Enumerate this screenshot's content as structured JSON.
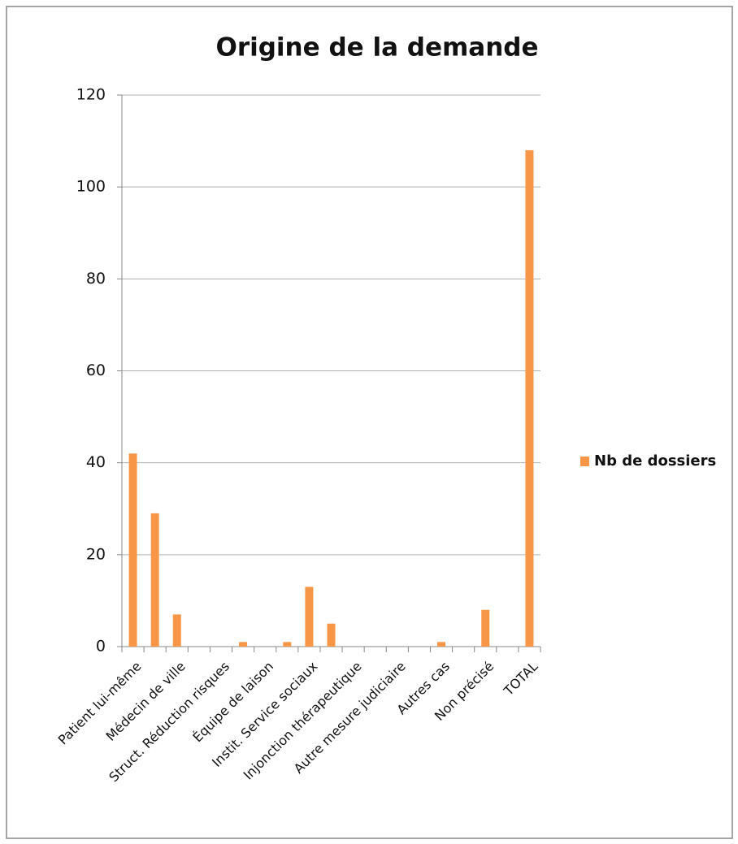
{
  "chart_data": {
    "type": "bar",
    "title": "Origine de la demande",
    "categories": [
      "Patient lui-même",
      null,
      "Médecin de ville",
      null,
      "Struct. Réduction risques",
      null,
      "Équipe de laison",
      null,
      "Instit. Service sociaux",
      null,
      "Injonction thérapeutique",
      null,
      "Autre mesure judiciaire",
      null,
      "Autres cas",
      null,
      "Non précisé",
      null,
      "TOTAL"
    ],
    "series": [
      {
        "name": "Nb de dossiers",
        "color": "#f79646",
        "values": [
          42,
          29,
          7,
          0,
          0,
          1,
          0,
          1,
          13,
          5,
          0,
          0,
          0,
          0,
          1,
          0,
          8,
          0,
          108
        ]
      }
    ],
    "ylim": [
      0,
      120
    ],
    "yticks": [
      0,
      20,
      40,
      60,
      80,
      100,
      120
    ],
    "grid": true,
    "legend": "right"
  }
}
